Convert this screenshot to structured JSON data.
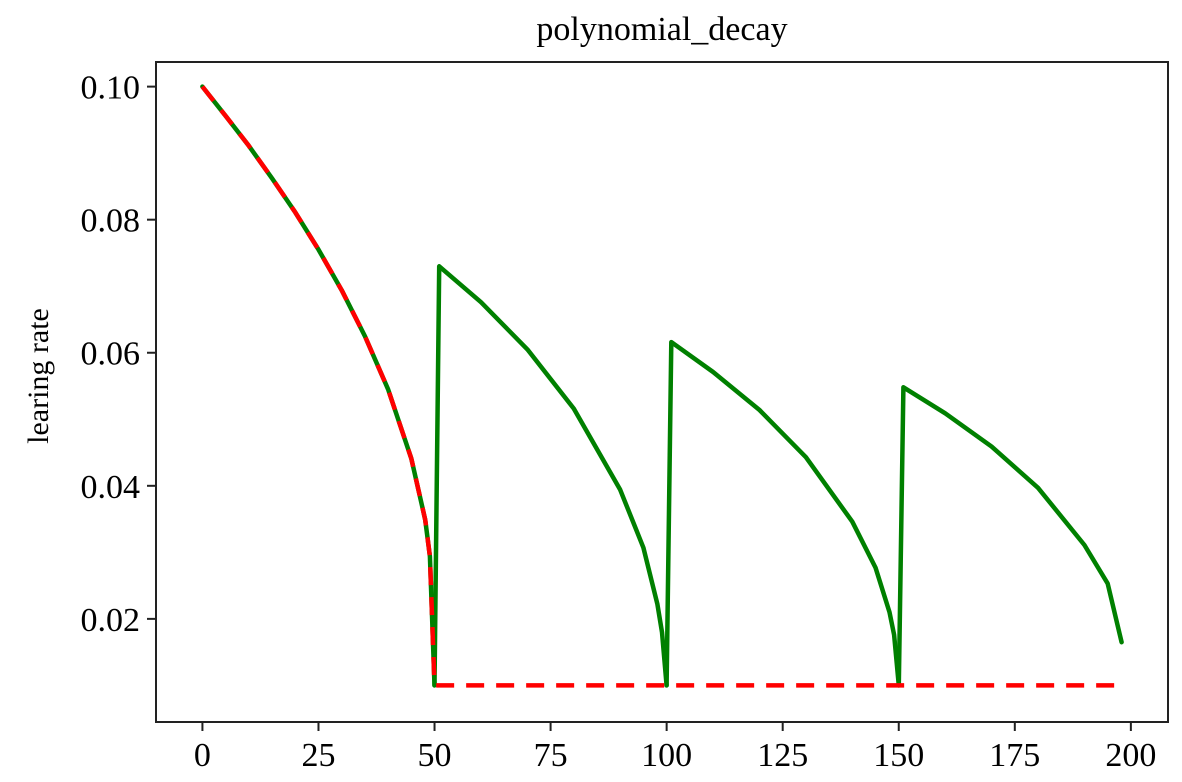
{
  "chart_data": {
    "type": "line",
    "title": "polynomial_decay",
    "xlabel": "",
    "ylabel": "learing rate",
    "xlim": [
      -10,
      208
    ],
    "ylim": [
      0.0045,
      0.1037
    ],
    "xticks": [
      0,
      25,
      50,
      75,
      100,
      125,
      150,
      175,
      200
    ],
    "yticks": [
      0.02,
      0.04,
      0.06,
      0.08,
      0.1
    ],
    "ytick_labels": [
      "0.02",
      "0.04",
      "0.06",
      "0.08",
      "0.10"
    ],
    "grid": false,
    "legend": "none",
    "series": [
      {
        "color": "#008000",
        "linestyle": "solid",
        "segments": [
          {
            "x": [
              0,
              5,
              10,
              15,
              20,
              25,
              30,
              35,
              40,
              45,
              48,
              49,
              50
            ],
            "y": [
              0.1,
              0.0956,
              0.0911,
              0.0862,
              0.0811,
              0.0755,
              0.0694,
              0.0625,
              0.0545,
              0.0441,
              0.0349,
              0.0294,
              0.01
            ]
          },
          {
            "x": [
              50,
              51,
              60,
              70,
              80,
              90,
              95,
              98,
              99,
              100
            ],
            "y": [
              0.01,
              0.073,
              0.0676,
              0.0605,
              0.0516,
              0.0394,
              0.0307,
              0.0222,
              0.018,
              0.01
            ]
          },
          {
            "x": [
              100,
              101,
              110,
              120,
              130,
              140,
              145,
              148,
              149,
              150
            ],
            "y": [
              0.01,
              0.0616,
              0.0571,
              0.0514,
              0.0443,
              0.0346,
              0.0277,
              0.021,
              0.0176,
              0.01
            ]
          },
          {
            "x": [
              150,
              151,
              160,
              170,
              180,
              190,
              195,
              198
            ],
            "y": [
              0.01,
              0.0548,
              0.0509,
              0.0459,
              0.0397,
              0.0311,
              0.0253,
              0.0165
            ]
          }
        ]
      },
      {
        "color": "#ff0000",
        "linestyle": "dashed",
        "segments": [
          {
            "x": [
              0,
              5,
              10,
              15,
              20,
              25,
              30,
              35,
              40,
              45,
              48,
              49,
              50,
              197
            ],
            "y": [
              0.1,
              0.0956,
              0.0911,
              0.0862,
              0.0811,
              0.0755,
              0.0694,
              0.0625,
              0.0545,
              0.0441,
              0.0349,
              0.0294,
              0.01,
              0.01
            ]
          }
        ]
      }
    ]
  }
}
